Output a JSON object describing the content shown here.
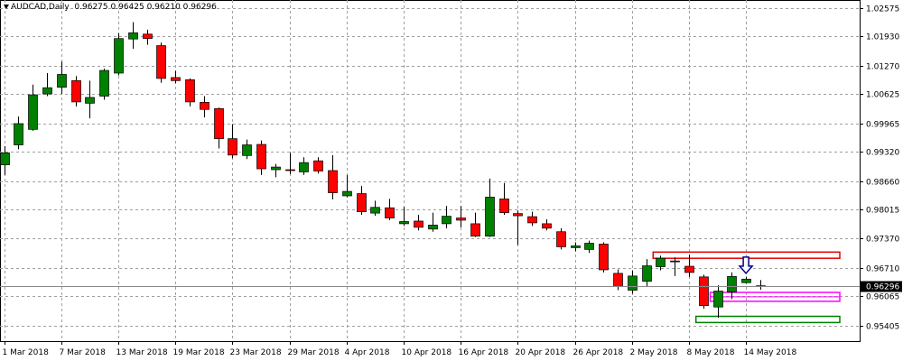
{
  "header": {
    "symbol": "AUDCAD,Daily",
    "ohlc": "0.96275 0.96425 0.96210 0.96296"
  },
  "chart_data": {
    "type": "candlestick",
    "symbol": "AUDCAD",
    "timeframe": "Daily",
    "ylim": [
      0.9505,
      1.0275
    ],
    "y_ticks": [
      "1.02575",
      "1.01930",
      "1.01270",
      "1.00625",
      "0.99965",
      "0.99320",
      "0.98660",
      "0.98015",
      "0.97370",
      "0.96710",
      "0.96065",
      "0.95405"
    ],
    "x_tick_labels": [
      "1 Mar 2018",
      "7 Mar 2018",
      "13 Mar 2018",
      "19 Mar 2018",
      "23 Mar 2018",
      "29 Mar 2018",
      "4 Apr 2018",
      "10 Apr 2018",
      "16 Apr 2018",
      "20 Apr 2018",
      "26 Apr 2018",
      "2 May 2018",
      "8 May 2018",
      "14 May 2018"
    ],
    "current_price": "0.96296",
    "grid": true,
    "colors": {
      "bull": "#008000",
      "bear": "#ff0000",
      "grid": "#a0a0a0",
      "zone_resistance": "#e00000",
      "zone_support": "#008000",
      "zone_magenta": "#ff00ff",
      "arrow": "#00008b"
    },
    "candles": [
      {
        "o": 0.9903,
        "h": 0.9945,
        "l": 0.988,
        "c": 0.993
      },
      {
        "o": 0.9948,
        "h": 1.0012,
        "l": 0.9938,
        "c": 0.9996
      },
      {
        "o": 0.9983,
        "h": 1.0084,
        "l": 0.998,
        "c": 1.0061
      },
      {
        "o": 1.0063,
        "h": 1.011,
        "l": 1.0058,
        "c": 1.0077
      },
      {
        "o": 1.0078,
        "h": 1.0136,
        "l": 1.0063,
        "c": 1.0107
      },
      {
        "o": 1.0093,
        "h": 1.0103,
        "l": 1.0035,
        "c": 1.0045
      },
      {
        "o": 1.0042,
        "h": 1.0093,
        "l": 1.0008,
        "c": 1.0055
      },
      {
        "o": 1.0058,
        "h": 1.012,
        "l": 1.005,
        "c": 1.0116
      },
      {
        "o": 1.011,
        "h": 1.02,
        "l": 1.0105,
        "c": 1.0188
      },
      {
        "o": 1.0187,
        "h": 1.0225,
        "l": 1.0165,
        "c": 1.0201
      },
      {
        "o": 1.0198,
        "h": 1.0208,
        "l": 1.0174,
        "c": 1.0188
      },
      {
        "o": 1.0172,
        "h": 1.0179,
        "l": 1.0088,
        "c": 1.0098
      },
      {
        "o": 1.01,
        "h": 1.0115,
        "l": 1.0087,
        "c": 1.0093
      },
      {
        "o": 1.0095,
        "h": 1.0098,
        "l": 1.0035,
        "c": 1.0045
      },
      {
        "o": 1.0044,
        "h": 1.0058,
        "l": 1.001,
        "c": 1.0028
      },
      {
        "o": 1.003,
        "h": 1.0032,
        "l": 0.994,
        "c": 0.9962
      },
      {
        "o": 0.9962,
        "h": 0.9995,
        "l": 0.9918,
        "c": 0.9925
      },
      {
        "o": 0.9924,
        "h": 0.996,
        "l": 0.9916,
        "c": 0.9948
      },
      {
        "o": 0.9949,
        "h": 0.9958,
        "l": 0.988,
        "c": 0.9894
      },
      {
        "o": 0.9892,
        "h": 0.9905,
        "l": 0.9875,
        "c": 0.9898
      },
      {
        "o": 0.9892,
        "h": 0.993,
        "l": 0.9882,
        "c": 0.9891
      },
      {
        "o": 0.9887,
        "h": 0.992,
        "l": 0.988,
        "c": 0.9908
      },
      {
        "o": 0.9912,
        "h": 0.992,
        "l": 0.9883,
        "c": 0.9889
      },
      {
        "o": 0.989,
        "h": 0.9925,
        "l": 0.9825,
        "c": 0.984
      },
      {
        "o": 0.9833,
        "h": 0.988,
        "l": 0.983,
        "c": 0.9843
      },
      {
        "o": 0.9838,
        "h": 0.9855,
        "l": 0.979,
        "c": 0.9797
      },
      {
        "o": 0.9794,
        "h": 0.9822,
        "l": 0.9788,
        "c": 0.9807
      },
      {
        "o": 0.9806,
        "h": 0.9826,
        "l": 0.9778,
        "c": 0.9783
      },
      {
        "o": 0.977,
        "h": 0.9808,
        "l": 0.9765,
        "c": 0.9775
      },
      {
        "o": 0.9776,
        "h": 0.979,
        "l": 0.9755,
        "c": 0.9762
      },
      {
        "o": 0.9758,
        "h": 0.9795,
        "l": 0.9752,
        "c": 0.9767
      },
      {
        "o": 0.977,
        "h": 0.981,
        "l": 0.976,
        "c": 0.9787
      },
      {
        "o": 0.9783,
        "h": 0.981,
        "l": 0.9762,
        "c": 0.9778
      },
      {
        "o": 0.977,
        "h": 0.9795,
        "l": 0.974,
        "c": 0.9742
      },
      {
        "o": 0.9742,
        "h": 0.9872,
        "l": 0.974,
        "c": 0.983
      },
      {
        "o": 0.9826,
        "h": 0.9862,
        "l": 0.979,
        "c": 0.9795
      },
      {
        "o": 0.9793,
        "h": 0.98,
        "l": 0.9722,
        "c": 0.9788
      },
      {
        "o": 0.9786,
        "h": 0.9797,
        "l": 0.9765,
        "c": 0.9772
      },
      {
        "o": 0.977,
        "h": 0.978,
        "l": 0.9755,
        "c": 0.976
      },
      {
        "o": 0.9752,
        "h": 0.976,
        "l": 0.9712,
        "c": 0.9718
      },
      {
        "o": 0.9716,
        "h": 0.9728,
        "l": 0.9708,
        "c": 0.972
      },
      {
        "o": 0.9712,
        "h": 0.9732,
        "l": 0.9704,
        "c": 0.9726
      },
      {
        "o": 0.9724,
        "h": 0.9728,
        "l": 0.966,
        "c": 0.9666
      },
      {
        "o": 0.9658,
        "h": 0.9667,
        "l": 0.962,
        "c": 0.9628
      },
      {
        "o": 0.962,
        "h": 0.9665,
        "l": 0.9612,
        "c": 0.9652
      },
      {
        "o": 0.964,
        "h": 0.969,
        "l": 0.9628,
        "c": 0.9675
      },
      {
        "o": 0.9673,
        "h": 0.9698,
        "l": 0.9665,
        "c": 0.9692
      },
      {
        "o": 0.9686,
        "h": 0.9694,
        "l": 0.9652,
        "c": 0.9684
      },
      {
        "o": 0.9674,
        "h": 0.97,
        "l": 0.965,
        "c": 0.966
      },
      {
        "o": 0.965,
        "h": 0.9655,
        "l": 0.9578,
        "c": 0.9585
      },
      {
        "o": 0.9582,
        "h": 0.9631,
        "l": 0.9558,
        "c": 0.9618
      },
      {
        "o": 0.9616,
        "h": 0.966,
        "l": 0.96,
        "c": 0.9651
      },
      {
        "o": 0.9637,
        "h": 0.965,
        "l": 0.9635,
        "c": 0.9645
      },
      {
        "o": 0.9628,
        "h": 0.9643,
        "l": 0.9621,
        "c": 0.963
      }
    ],
    "zones": [
      {
        "name": "resistance-zone",
        "y_top": 0.9706,
        "y_bottom": 0.9692,
        "from_index": 46,
        "color": "#e00000"
      },
      {
        "name": "magenta-zone",
        "y_top": 0.9615,
        "y_bottom": 0.9595,
        "from_index": 50,
        "color": "#ff00ff"
      },
      {
        "name": "support-zone",
        "y_top": 0.9561,
        "y_bottom": 0.9547,
        "from_index": 49,
        "color": "#008000"
      }
    ],
    "arrow_candle_index": 52
  }
}
